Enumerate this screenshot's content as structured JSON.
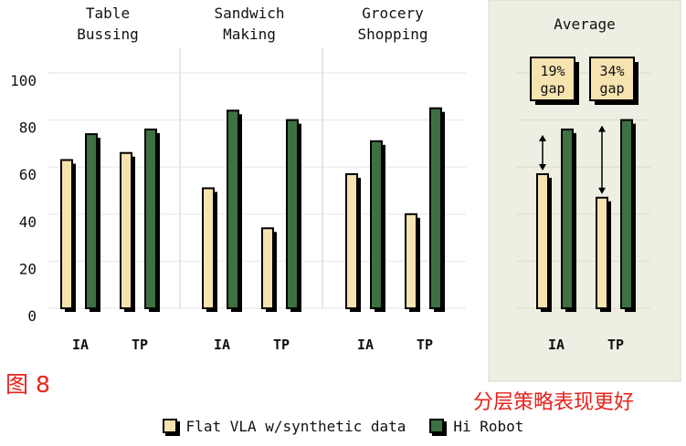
{
  "chart_data": {
    "type": "bar",
    "title": "",
    "xlabel": "",
    "ylabel": "",
    "ylim": [
      0,
      100
    ],
    "yticks": [
      0,
      20,
      40,
      60,
      80,
      100
    ],
    "grid": true,
    "legend_position": "bottom",
    "series": [
      {
        "name": "Flat VLA w/synthetic data",
        "color": "#f7e3b0"
      },
      {
        "name": "Hi Robot",
        "color": "#3d7042"
      }
    ],
    "panels": [
      {
        "title": [
          "Table",
          "Bussing"
        ],
        "groups": [
          {
            "label": "IA",
            "values": [
              63,
              74
            ]
          },
          {
            "label": "TP",
            "values": [
              66,
              76
            ]
          }
        ]
      },
      {
        "title": [
          "Sandwich",
          "Making"
        ],
        "groups": [
          {
            "label": "IA",
            "values": [
              51,
              84
            ]
          },
          {
            "label": "TP",
            "values": [
              34,
              80
            ]
          }
        ]
      },
      {
        "title": [
          "Grocery",
          "Shopping"
        ],
        "groups": [
          {
            "label": "IA",
            "values": [
              57,
              71
            ]
          },
          {
            "label": "TP",
            "values": [
              40,
              85
            ]
          }
        ]
      }
    ],
    "average": {
      "title": "Average",
      "background": "#eeeee2",
      "groups": [
        {
          "label": "IA",
          "values": [
            57,
            76
          ],
          "gap": [
            "19%",
            "gap"
          ]
        },
        {
          "label": "TP",
          "values": [
            47,
            80
          ],
          "gap": [
            "34%",
            "gap"
          ]
        }
      ]
    }
  },
  "figure_label": "图 8",
  "annotation": "分层策略表现更好"
}
